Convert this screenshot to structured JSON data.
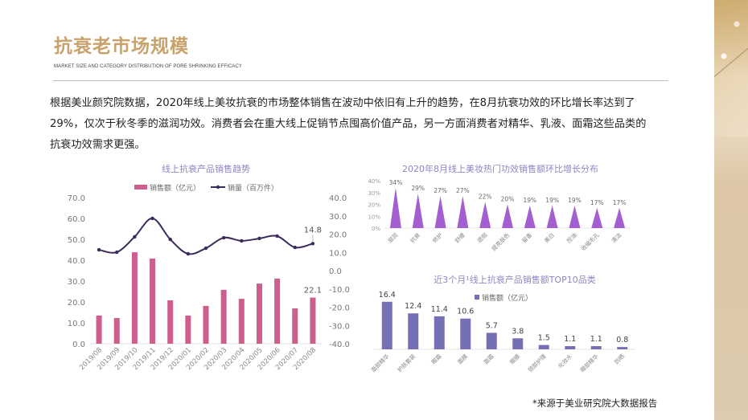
{
  "header": {
    "title": "抗衰老市场规模",
    "subtitle": "MARKET SIZE AND CATEGORY DISTRIBUTION OF PORE SHRINKING EFFICACY"
  },
  "body_text": {
    "line1": "根据美业颜究院数据，2020年线上美妆抗衰的市场整体销售在波动中依旧有上升的趋势，在8月抗衰功效的环比增长率达到了",
    "line2": "29%，仅次于秋冬季的滋润功效。消费者会在重大线上促销节点囤高价值产品，另一方面消费者对精华、乳液、面霜这些品类的",
    "line3": "抗衰功效需求更强。"
  },
  "footnote": "*来源于美业研究院大数据报告",
  "colors": {
    "title": "#c9a26b",
    "bar_pink": "#cc5f8e",
    "line_purple": "#3d2a5c",
    "triangle_purple": "#a35fd0",
    "bar_slate": "#7470b3",
    "chart_title": "#8e86c4"
  },
  "chart_data": [
    {
      "type": "bar",
      "title": "线上抗衰产品销售趋势",
      "categories": [
        "2019/08",
        "2019/09",
        "2019/10",
        "2019/11",
        "2019/12",
        "2020/01",
        "2020/02",
        "2020/03",
        "2020/04",
        "2020/05",
        "2020/06",
        "2020/07",
        "2020/08"
      ],
      "series": [
        {
          "name": "销售额（亿元）",
          "kind": "bar",
          "axis": "left",
          "values": [
            13.5,
            12.3,
            43.8,
            40.8,
            20.8,
            13.5,
            18.1,
            25.8,
            21.5,
            28.8,
            31.2,
            16.9,
            22.1
          ]
        },
        {
          "name": "销量（百万件）",
          "kind": "line",
          "axis": "right",
          "values": [
            11.4,
            10.1,
            18.5,
            28.6,
            17.1,
            9.2,
            12.3,
            18.0,
            16.3,
            17.6,
            18.9,
            12.7,
            14.8
          ]
        }
      ],
      "left_ticks": [
        "0.0",
        "10.0",
        "20.0",
        "30.0",
        "40.0",
        "50.0",
        "60.0",
        "70.0"
      ],
      "right_ticks": [
        "-40.0",
        "-30.0",
        "-20.0",
        "-10.0",
        "0.0",
        "10.0",
        "20.0",
        "30.0",
        "40.0"
      ],
      "ylim_left": [
        0,
        70
      ],
      "ylim_right": [
        -40,
        40
      ],
      "data_labels": {
        "bar_last": "22.1",
        "line_last": "14.8"
      },
      "legend": "top"
    },
    {
      "type": "bar",
      "title": "2020年8月线上美妆热门功效销售额环比增长分布",
      "categories": [
        "滋润",
        "抗衰",
        "修护",
        "舒缓",
        "遮瑕",
        "提亮肤色",
        "留香",
        "美白",
        "控油",
        "收缩毛孔",
        "清洁"
      ],
      "values": [
        34,
        29,
        27,
        27,
        22,
        20,
        19,
        19,
        19,
        17,
        17
      ],
      "value_labels": [
        "34%",
        "29%",
        "27%",
        "27%",
        "22%",
        "20%",
        "19%",
        "19%",
        "19%",
        "17%",
        "17%"
      ],
      "y_ticks": [
        "0%",
        "10%",
        "20%",
        "30%",
        "40%"
      ],
      "ylim": [
        0,
        40
      ]
    },
    {
      "type": "bar",
      "title": "近3个月¹线上抗衰产品销售额TOP10品类",
      "legend_label": "销售额（亿元）",
      "categories": [
        "面部精华",
        "护肤套装",
        "眼霜",
        "面膜",
        "面霜",
        "眼膜",
        "颈部护理",
        "化妆水",
        "眼部精华",
        "防晒"
      ],
      "values": [
        16.4,
        12.4,
        11.4,
        10.6,
        5.7,
        3.8,
        1.5,
        1.1,
        1.1,
        0.8
      ],
      "value_labels": [
        "16.4",
        "12.4",
        "11.4",
        "10.6",
        "5.7",
        "3.8",
        "1.5",
        "1.1",
        "1.1",
        "0.8"
      ],
      "ylim": [
        0,
        18
      ]
    }
  ]
}
